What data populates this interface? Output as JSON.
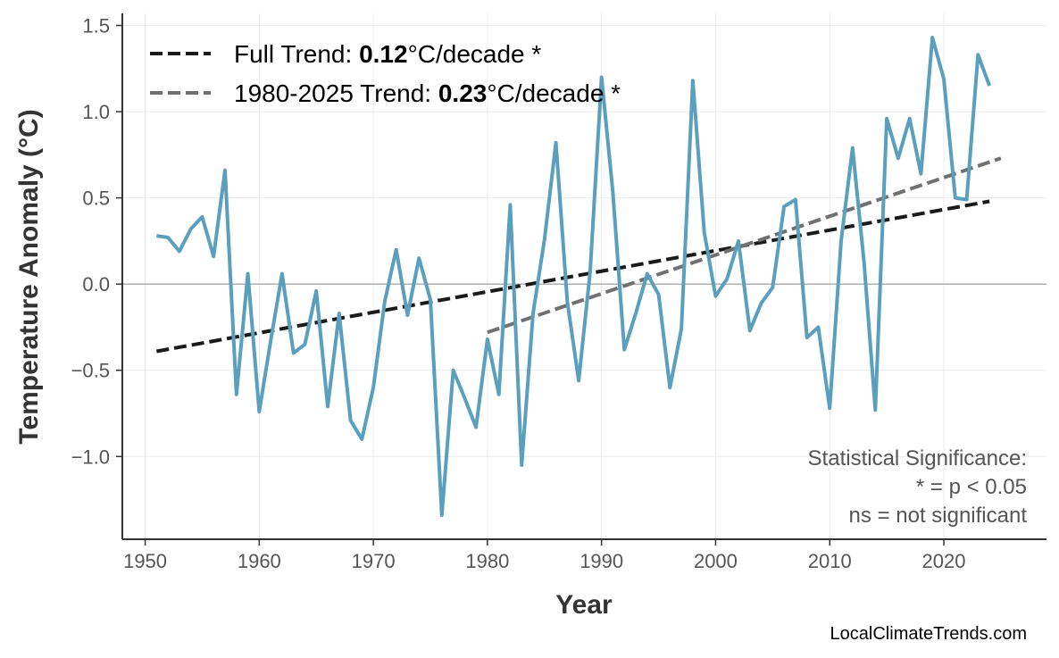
{
  "chart_data": {
    "type": "line",
    "title": "",
    "xlabel": "Year",
    "ylabel": "Temperature Anomaly (°C)",
    "xlim": [
      1948,
      2029
    ],
    "ylim": [
      -1.48,
      1.57
    ],
    "xticks": [
      1950,
      1960,
      1970,
      1980,
      1990,
      2000,
      2010,
      2020
    ],
    "yticks": [
      -1.0,
      -0.5,
      0.0,
      0.5,
      1.0,
      1.5
    ],
    "ytick_labels": [
      "−1.0",
      "−0.5",
      "0.0",
      "0.5",
      "1.0",
      "1.5"
    ],
    "grid": true,
    "zero_line": true,
    "series": [
      {
        "color": "#5a9fbe",
        "x": [
          1951,
          1952,
          1953,
          1954,
          1955,
          1956,
          1957,
          1958,
          1959,
          1960,
          1961,
          1962,
          1963,
          1964,
          1965,
          1966,
          1967,
          1968,
          1969,
          1970,
          1971,
          1972,
          1973,
          1974,
          1975,
          1976,
          1977,
          1978,
          1979,
          1980,
          1981,
          1982,
          1983,
          1984,
          1985,
          1986,
          1987,
          1988,
          1989,
          1990,
          1991,
          1992,
          1993,
          1994,
          1995,
          1996,
          1997,
          1998,
          1999,
          2000,
          2001,
          2002,
          2003,
          2004,
          2005,
          2006,
          2007,
          2008,
          2009,
          2010,
          2011,
          2012,
          2013,
          2014,
          2015,
          2016,
          2017,
          2018,
          2019,
          2020,
          2021,
          2022,
          2023,
          2024
        ],
        "y": [
          0.28,
          0.27,
          0.19,
          0.32,
          0.39,
          0.16,
          0.66,
          -0.64,
          0.06,
          -0.74,
          -0.33,
          0.06,
          -0.4,
          -0.35,
          -0.04,
          -0.71,
          -0.17,
          -0.79,
          -0.9,
          -0.6,
          -0.1,
          0.2,
          -0.18,
          0.15,
          -0.09,
          -1.34,
          -0.5,
          -0.66,
          -0.83,
          -0.32,
          -0.64,
          0.46,
          -1.05,
          -0.17,
          0.26,
          0.82,
          -0.1,
          -0.56,
          0.07,
          1.2,
          0.53,
          -0.38,
          -0.17,
          0.06,
          -0.06,
          -0.6,
          -0.26,
          1.18,
          0.3,
          -0.07,
          0.03,
          0.25,
          -0.27,
          -0.11,
          -0.02,
          0.45,
          0.49,
          -0.31,
          -0.25,
          -0.72,
          0.25,
          0.79,
          0.13,
          -0.73,
          0.96,
          0.73,
          0.96,
          0.64,
          1.43,
          1.19,
          0.5,
          0.49,
          1.33,
          1.15
        ]
      }
    ],
    "trends": [
      {
        "label_prefix": "Full Trend: ",
        "value": "0.12",
        "label_suffix": "°C/decade *",
        "color": "#1a1a1a",
        "x": [
          1951,
          2024
        ],
        "y": [
          -0.39,
          0.48
        ]
      },
      {
        "label_prefix": "1980-2025 Trend: ",
        "value": "0.23",
        "label_suffix": "°C/decade *",
        "color": "#707070",
        "x": [
          1980,
          2025
        ],
        "y": [
          -0.28,
          0.73
        ]
      }
    ],
    "legend_position": "top-left",
    "annotation": [
      "Statistical Significance:",
      "* = p < 0.05",
      "ns = not significant"
    ],
    "credit": "LocalClimateTrends.com"
  }
}
